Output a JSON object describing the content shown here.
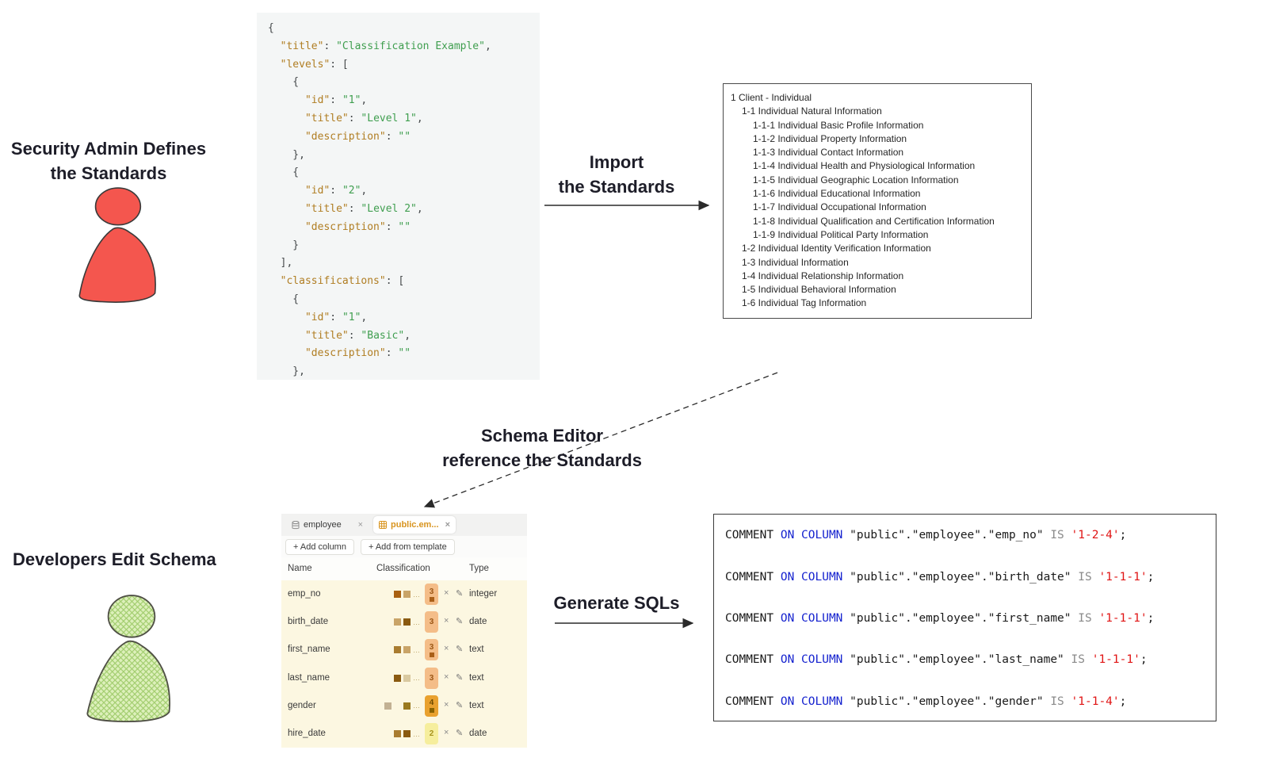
{
  "icons": {
    "close": "×",
    "pencil": "✎",
    "dots": "…"
  },
  "colors": {
    "admin_fill": "#f4564e",
    "dev_fill": "#cfe8a8",
    "tab_active_text": "#d8941f",
    "sql_keyword_blue": "#1522cf",
    "sql_literal_red": "#e01414"
  },
  "admin": {
    "caption": "Security Admin Defines\nthe Standards"
  },
  "developer": {
    "caption": "Developers Edit Schema"
  },
  "arrows": {
    "import": "Import\nthe Standards",
    "schema_ref": "Schema Editor\nreference the Standards",
    "generate": "Generate SQLs"
  },
  "json_snippet": {
    "lines": [
      [
        [
          "p",
          "{"
        ]
      ],
      [
        [
          "p",
          "  "
        ],
        [
          "k",
          "\"title\""
        ],
        [
          "p",
          ": "
        ],
        [
          "s",
          "\"Classification Example\""
        ],
        [
          "p",
          ","
        ]
      ],
      [
        [
          "p",
          "  "
        ],
        [
          "k",
          "\"levels\""
        ],
        [
          "p",
          ": ["
        ]
      ],
      [
        [
          "p",
          "    {"
        ]
      ],
      [
        [
          "p",
          "      "
        ],
        [
          "k",
          "\"id\""
        ],
        [
          "p",
          ": "
        ],
        [
          "s",
          "\"1\""
        ],
        [
          "p",
          ","
        ]
      ],
      [
        [
          "p",
          "      "
        ],
        [
          "k",
          "\"title\""
        ],
        [
          "p",
          ": "
        ],
        [
          "s",
          "\"Level 1\""
        ],
        [
          "p",
          ","
        ]
      ],
      [
        [
          "p",
          "      "
        ],
        [
          "k",
          "\"description\""
        ],
        [
          "p",
          ": "
        ],
        [
          "s",
          "\"\""
        ]
      ],
      [
        [
          "p",
          "    },"
        ]
      ],
      [
        [
          "p",
          "    {"
        ]
      ],
      [
        [
          "p",
          "      "
        ],
        [
          "k",
          "\"id\""
        ],
        [
          "p",
          ": "
        ],
        [
          "s",
          "\"2\""
        ],
        [
          "p",
          ","
        ]
      ],
      [
        [
          "p",
          "      "
        ],
        [
          "k",
          "\"title\""
        ],
        [
          "p",
          ": "
        ],
        [
          "s",
          "\"Level 2\""
        ],
        [
          "p",
          ","
        ]
      ],
      [
        [
          "p",
          "      "
        ],
        [
          "k",
          "\"description\""
        ],
        [
          "p",
          ": "
        ],
        [
          "s",
          "\"\""
        ]
      ],
      [
        [
          "p",
          "    }"
        ]
      ],
      [
        [
          "p",
          "  ],"
        ]
      ],
      [
        [
          "p",
          "  "
        ],
        [
          "k",
          "\"classifications\""
        ],
        [
          "p",
          ": ["
        ]
      ],
      [
        [
          "p",
          "    {"
        ]
      ],
      [
        [
          "p",
          "      "
        ],
        [
          "k",
          "\"id\""
        ],
        [
          "p",
          ": "
        ],
        [
          "s",
          "\"1\""
        ],
        [
          "p",
          ","
        ]
      ],
      [
        [
          "p",
          "      "
        ],
        [
          "k",
          "\"title\""
        ],
        [
          "p",
          ": "
        ],
        [
          "s",
          "\"Basic\""
        ],
        [
          "p",
          ","
        ]
      ],
      [
        [
          "p",
          "      "
        ],
        [
          "k",
          "\"description\""
        ],
        [
          "p",
          ": "
        ],
        [
          "s",
          "\"\""
        ]
      ],
      [
        [
          "p",
          "    },"
        ]
      ]
    ]
  },
  "tree": {
    "items": [
      {
        "level": 0,
        "text": "1 Client - Individual"
      },
      {
        "level": 1,
        "text": "1-1 Individual Natural Information"
      },
      {
        "level": 2,
        "text": "1-1-1 Individual Basic Profile Information"
      },
      {
        "level": 2,
        "text": "1-1-2 Individual Property Information"
      },
      {
        "level": 2,
        "text": "1-1-3 Individual Contact Information"
      },
      {
        "level": 2,
        "text": "1-1-4 Individual Health and Physiological Information"
      },
      {
        "level": 2,
        "text": "1-1-5 Individual Geographic Location Information"
      },
      {
        "level": 2,
        "text": "1-1-6 Individual Educational Information"
      },
      {
        "level": 2,
        "text": "1-1-7 Individual Occupational Information"
      },
      {
        "level": 2,
        "text": "1-1-8 Individual Qualification and Certification Information"
      },
      {
        "level": 2,
        "text": "1-1-9 Individual Political Party Information"
      },
      {
        "level": 1,
        "text": "1-2 Individual Identity Verification Information"
      },
      {
        "level": 1,
        "text": "1-3 Individual Information"
      },
      {
        "level": 1,
        "text": "1-4 Individual Relationship Information"
      },
      {
        "level": 1,
        "text": "1-5 Individual Behavioral Information"
      },
      {
        "level": 1,
        "text": "1-6 Individual Tag Information"
      }
    ]
  },
  "editor": {
    "tabs": [
      {
        "label": "employee",
        "active": false
      },
      {
        "label": "public.em...",
        "active": true
      }
    ],
    "buttons": [
      "+ Add column",
      "+ Add from template"
    ],
    "headers": [
      "Name",
      "Classification",
      "Type"
    ],
    "rows": [
      {
        "name": "emp_no",
        "lead_chip": null,
        "chips": [
          "#a96010",
          "#c9a468"
        ],
        "badge": {
          "n": "3",
          "tone": "peach",
          "sq": true
        },
        "type": "integer"
      },
      {
        "name": "birth_date",
        "lead_chip": null,
        "chips": [
          "#c9a468",
          "#8a5a10"
        ],
        "badge": {
          "n": "3",
          "tone": "peach",
          "sq": false
        },
        "type": "date"
      },
      {
        "name": "first_name",
        "lead_chip": null,
        "chips": [
          "#a97c30",
          "#c9a468"
        ],
        "badge": {
          "n": "3",
          "tone": "peach",
          "sq": true
        },
        "type": "text"
      },
      {
        "name": "last_name",
        "lead_chip": null,
        "chips": [
          "#8a5a10",
          "#d9c9a0"
        ],
        "badge": {
          "n": "3",
          "tone": "peach",
          "sq": false
        },
        "type": "text"
      },
      {
        "name": "gender",
        "lead_chip": "#c2b193",
        "chips": [
          "#9a7a20"
        ],
        "badge": {
          "n": "4",
          "tone": "orange",
          "sq": true
        },
        "type": "text"
      },
      {
        "name": "hire_date",
        "lead_chip": null,
        "chips": [
          "#a97c30",
          "#8a5a10"
        ],
        "badge": {
          "n": "2",
          "tone": "yellow",
          "sq": false
        },
        "type": "date"
      }
    ]
  },
  "sql": {
    "kw_comment": "COMMENT",
    "kw_on_column": "ON COLUMN",
    "kw_is": "IS",
    "terminator": ";",
    "statements": [
      {
        "column": "\"public\".\"employee\".\"emp_no\"",
        "code": "'1-2-4'"
      },
      {
        "column": "\"public\".\"employee\".\"birth_date\"",
        "code": "'1-1-1'"
      },
      {
        "column": "\"public\".\"employee\".\"first_name\"",
        "code": "'1-1-1'"
      },
      {
        "column": "\"public\".\"employee\".\"last_name\"",
        "code": "'1-1-1'"
      },
      {
        "column": "\"public\".\"employee\".\"gender\"",
        "code": "'1-1-4'"
      }
    ]
  }
}
